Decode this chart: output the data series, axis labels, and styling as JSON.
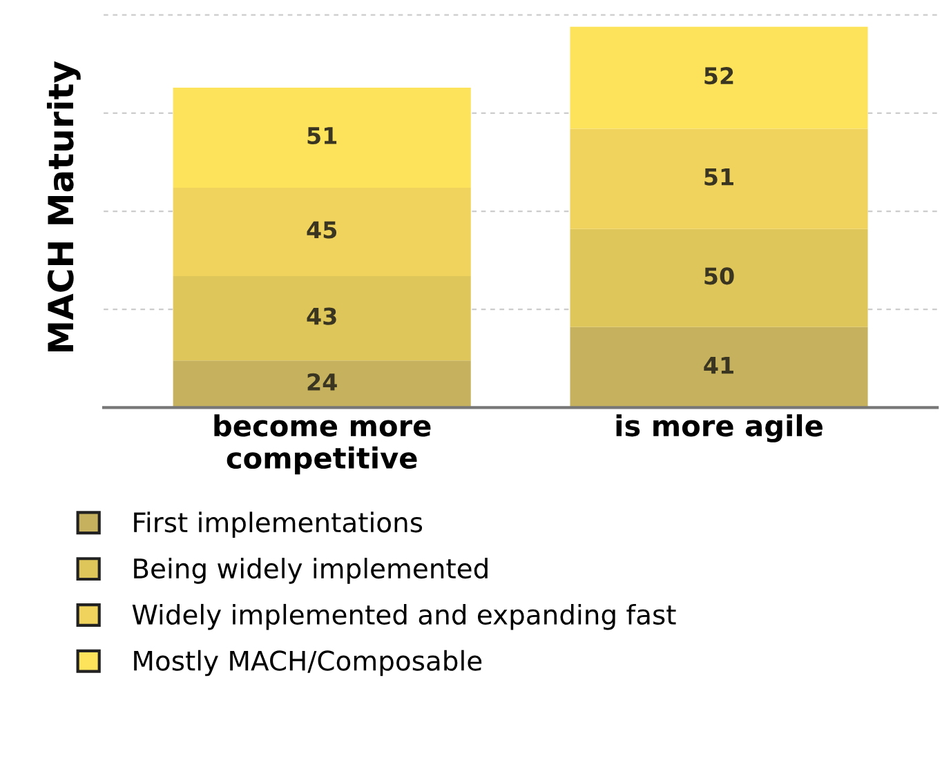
{
  "chart_data": {
    "type": "bar",
    "ylabel": "MACH Maturity",
    "stacked": true,
    "categories": [
      "become more\ncompetitive",
      "is more agile"
    ],
    "series": [
      {
        "name": "First implementations",
        "color": "#c6b25e",
        "values": [
          24,
          41
        ]
      },
      {
        "name": "Being widely implemented",
        "color": "#dfc65a",
        "values": [
          43,
          50
        ]
      },
      {
        "name": "Widely implemented and expanding fast",
        "color": "#efd35c",
        "values": [
          45,
          51
        ]
      },
      {
        "name": "Mostly MACH/Composable",
        "color": "#fde25c",
        "values": [
          51,
          52
        ]
      }
    ],
    "yticks": [
      {
        "value": 50,
        "label": null
      },
      {
        "value": 100,
        "label": null
      },
      {
        "value": 150,
        "label": null
      },
      {
        "value": 200,
        "label": null
      }
    ],
    "tick_labels": "x",
    "grid": "y",
    "data_labels": true,
    "legend": "bottom"
  }
}
